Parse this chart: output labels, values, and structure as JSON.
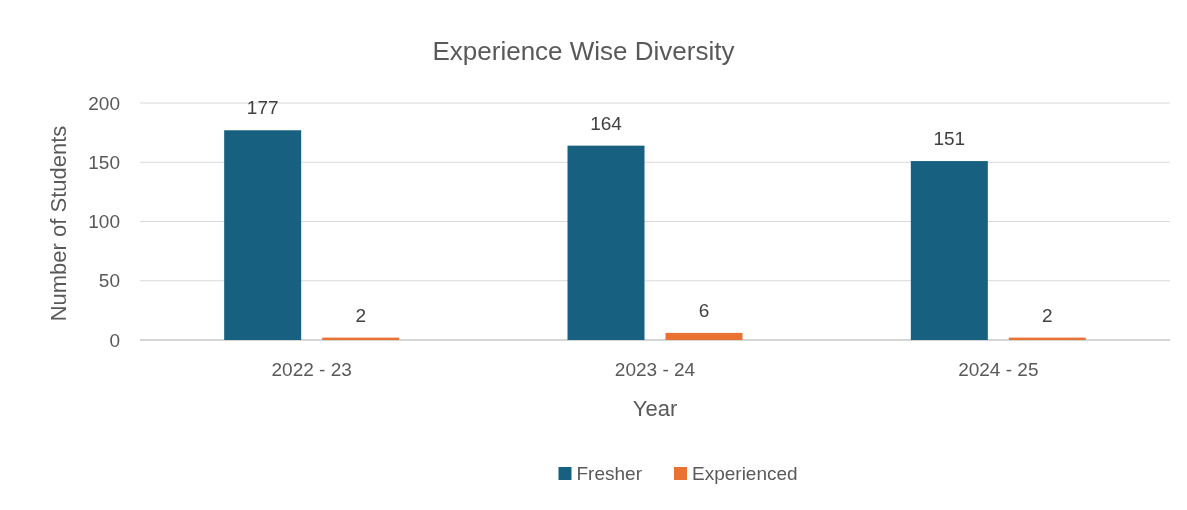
{
  "chart_data": {
    "type": "bar",
    "title": "Experience Wise Diversity",
    "xlabel": "Year",
    "ylabel": "Number of Students",
    "categories": [
      "2022 - 23",
      "2023 - 24",
      "2024 - 25"
    ],
    "series": [
      {
        "name": "Fresher",
        "color": "#17607f",
        "values": [
          177,
          164,
          151
        ]
      },
      {
        "name": "Experienced",
        "color": "#e97132",
        "values": [
          2,
          6,
          2
        ]
      }
    ],
    "ylim": [
      0,
      200
    ],
    "yticks": [
      0,
      50,
      100,
      150,
      200
    ],
    "grid": "y",
    "legend": "bottom",
    "data_labels": true
  }
}
